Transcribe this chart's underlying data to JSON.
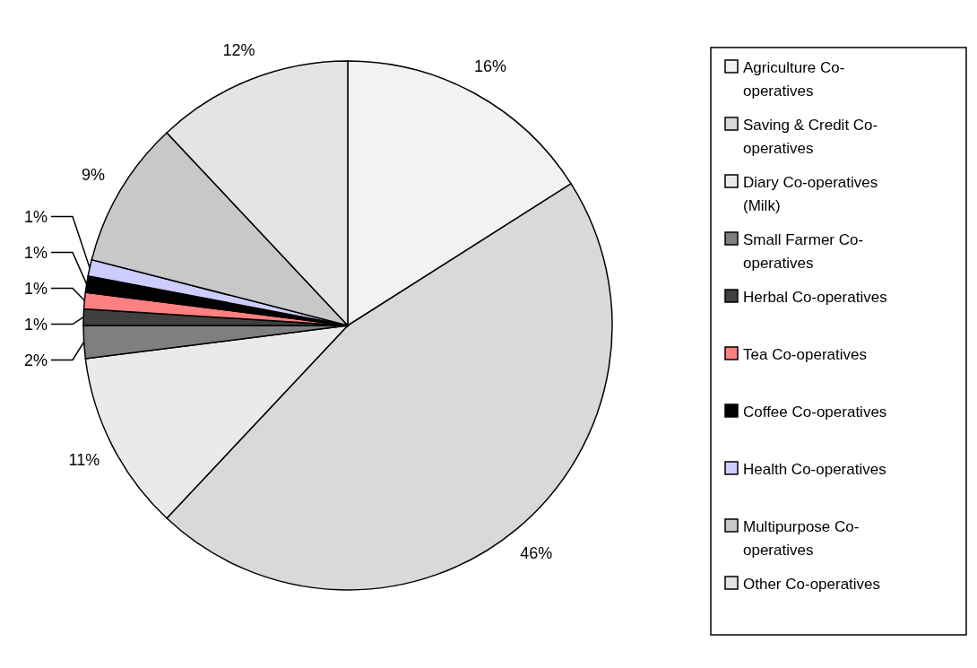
{
  "chart_data": {
    "type": "pie",
    "categories": [
      "Agriculture Co-operatives",
      "Saving & Credit Co-operatives",
      "Diary Co-operatives (Milk)",
      "Small Farmer Co-operatives",
      "Herbal Co-operatives",
      "Tea Co-operatives",
      "Coffee Co-operatives",
      "Health Co-operatives",
      "Multipurpose Co-operatives",
      "Other Co-operatives"
    ],
    "values": [
      16,
      46,
      11,
      2,
      1,
      1,
      1,
      1,
      9,
      12
    ],
    "value_labels": [
      "16%",
      "46%",
      "11%",
      "2%",
      "1%",
      "1%",
      "1%",
      "1%",
      "9%",
      "12%"
    ],
    "colors": [
      "#f2f2f2",
      "#d9d9d9",
      "#eaeaea",
      "#7f7f7f",
      "#404040",
      "#ff8080",
      "#000000",
      "#ccccff",
      "#c8c8c8",
      "#e4e4e4"
    ],
    "legend": "right"
  }
}
